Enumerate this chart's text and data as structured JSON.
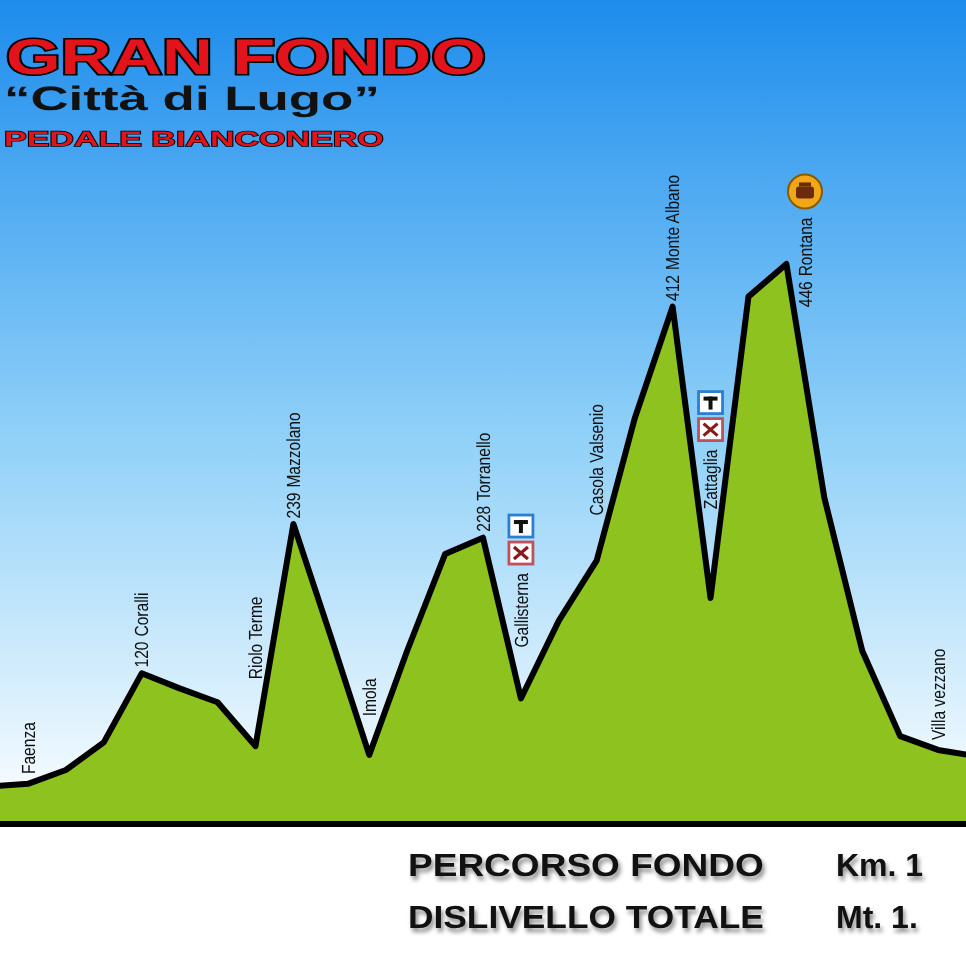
{
  "chart_data": {
    "type": "area",
    "title": "GRAN FONDO",
    "subtitle": "“Città di Lugo”",
    "annotations": [
      "PEDALE BIANCONERO",
      "PERCORSO FONDO",
      "Km. 1",
      "DISLIVELLO TOTALE",
      "Mt. 1."
    ],
    "categories": [
      null,
      "Faenza",
      null,
      null,
      "Coralli",
      null,
      null,
      "Riolo Terme",
      "Mazzolano",
      null,
      "Imola",
      null,
      null,
      "Torranello",
      "Gallisterna",
      null,
      "Casola Valsenio",
      null,
      "Monte Albano",
      "Zattaglia",
      null,
      "Rontana",
      null,
      null,
      null,
      "Villa vezzano",
      null
    ],
    "values": [
      30,
      32,
      43,
      65,
      120,
      108,
      97,
      62,
      239,
      148,
      55,
      138,
      215,
      228,
      100,
      162,
      210,
      323,
      412,
      180,
      420,
      446,
      260,
      138,
      70,
      59,
      54
    ],
    "value_labels": [
      null,
      null,
      null,
      null,
      "120",
      null,
      null,
      null,
      "239",
      null,
      null,
      null,
      null,
      "228",
      null,
      null,
      null,
      null,
      "412",
      null,
      null,
      "446",
      null,
      null,
      null,
      null,
      null
    ],
    "color": "#8dc21f"
  }
}
